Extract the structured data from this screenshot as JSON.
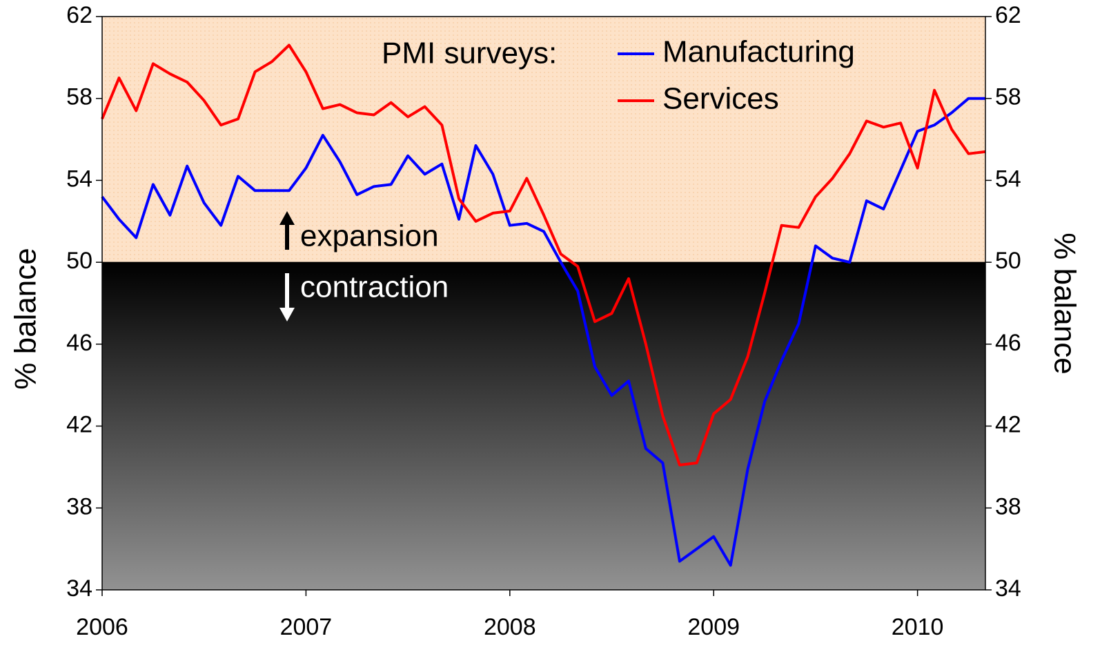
{
  "chart_data": {
    "type": "line",
    "annotations": [
      "PMI surveys:",
      "expansion",
      "contraction"
    ],
    "ylabel": "% balance",
    "y2label": "% balance",
    "threshold": 50,
    "x": [
      2006,
      2006.083,
      2006.167,
      2006.25,
      2006.333,
      2006.417,
      2006.5,
      2006.583,
      2006.667,
      2006.75,
      2006.833,
      2006.917,
      2007,
      2007.083,
      2007.167,
      2007.25,
      2007.333,
      2007.417,
      2007.5,
      2007.583,
      2007.667,
      2007.75,
      2007.833,
      2007.917,
      2008,
      2008.083,
      2008.167,
      2008.25,
      2008.333,
      2008.417,
      2008.5,
      2008.583,
      2008.667,
      2008.75,
      2008.833,
      2008.917,
      2009,
      2009.083,
      2009.167,
      2009.25,
      2009.333,
      2009.417,
      2009.5,
      2009.583,
      2009.667,
      2009.75,
      2009.833,
      2009.917,
      2010,
      2010.083,
      2010.167,
      2010.25,
      2010.333
    ],
    "series": [
      {
        "name": "Manufacturing",
        "color": "#0000ff",
        "values": [
          53.2,
          52.1,
          51.2,
          53.8,
          52.3,
          54.7,
          52.9,
          51.8,
          54.2,
          53.5,
          53.5,
          53.5,
          54.6,
          56.2,
          54.9,
          53.3,
          53.7,
          53.8,
          55.2,
          54.3,
          54.8,
          52.1,
          55.7,
          54.3,
          51.8,
          51.9,
          51.5,
          50.0,
          48.6,
          44.9,
          43.5,
          44.2,
          40.9,
          40.2,
          35.4,
          36.0,
          36.6,
          35.2,
          39.9,
          43.2,
          45.2,
          47.0,
          50.8,
          50.2,
          50.0,
          53.0,
          52.6,
          54.5,
          56.4,
          56.7,
          57.3,
          58.0,
          58.0
        ]
      },
      {
        "name": "Services",
        "color": "#ff0000",
        "values": [
          57.0,
          59.0,
          57.4,
          59.7,
          59.2,
          58.8,
          57.9,
          56.7,
          57.0,
          59.3,
          59.8,
          60.6,
          59.3,
          57.5,
          57.7,
          57.3,
          57.2,
          57.8,
          57.1,
          57.6,
          56.7,
          53.1,
          52.0,
          52.4,
          52.5,
          54.1,
          52.3,
          50.4,
          49.8,
          47.1,
          47.5,
          49.2,
          46.0,
          42.5,
          40.1,
          40.2,
          42.6,
          43.3,
          45.4,
          48.5,
          51.8,
          51.7,
          53.2,
          54.1,
          55.3,
          56.9,
          56.6,
          56.8,
          54.6,
          58.4,
          56.5,
          55.3,
          55.4
        ]
      }
    ],
    "xlim": [
      2006,
      2010.333
    ],
    "xticks": [
      2006,
      2007,
      2008,
      2009,
      2010
    ],
    "ylim": [
      34,
      62
    ],
    "yticks": [
      34,
      38,
      42,
      46,
      50,
      54,
      58,
      62
    ],
    "y2lim": [
      34,
      62
    ],
    "y2ticks": [
      34,
      38,
      42,
      46,
      50,
      54,
      58,
      62
    ],
    "legend": "top"
  }
}
